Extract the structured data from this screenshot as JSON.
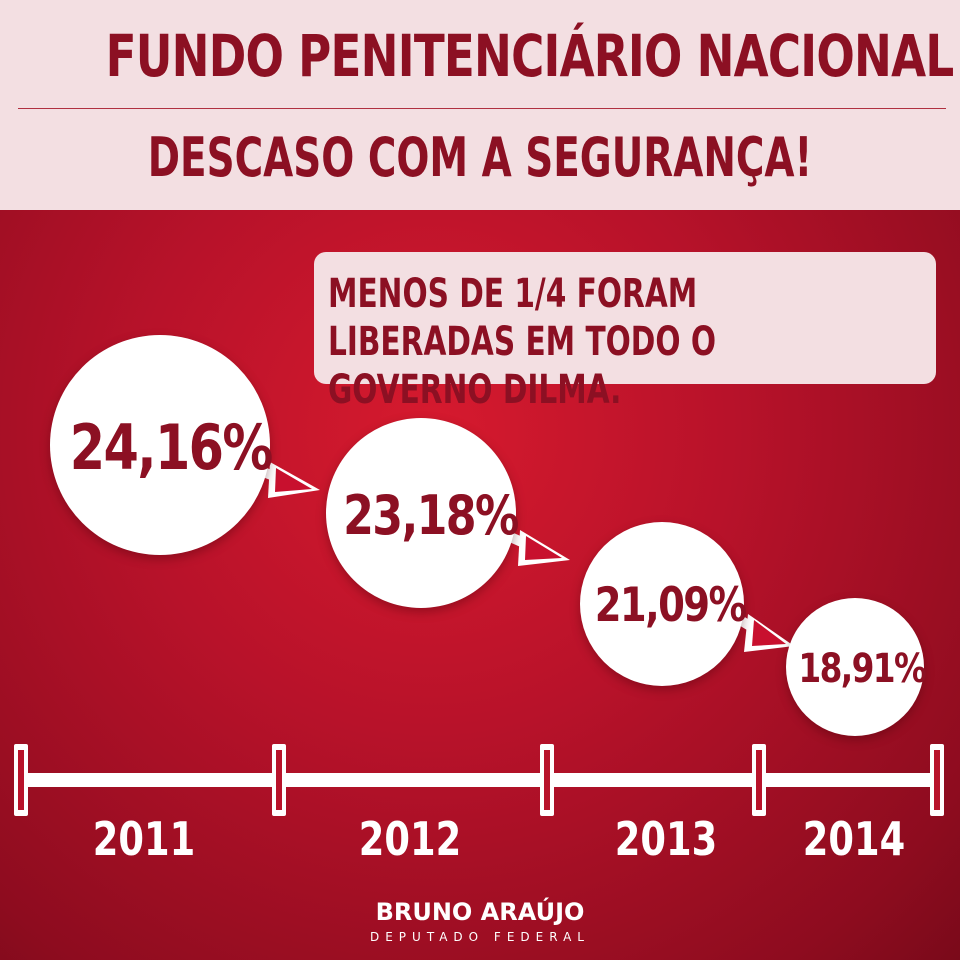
{
  "header": {
    "title": "FUNDO PENITENCIÁRIO NACIONAL",
    "subtitle": "DESCASO COM A SEGURANÇA!"
  },
  "note": {
    "text": "MENOS DE 1/4 FORAM LIBERADAS EM TODO O GOVERNO DILMA."
  },
  "values": [
    {
      "year": "2011",
      "label": "24,16%"
    },
    {
      "year": "2012",
      "label": "23,18%"
    },
    {
      "year": "2013",
      "label": "21,09%"
    },
    {
      "year": "2014",
      "label": "18,91%"
    }
  ],
  "footer": {
    "name": "BRUNO ARAÚJO",
    "role": "DEPUTADO FEDERAL"
  },
  "colors": {
    "accent": "#8c1023",
    "background": "#b8122a",
    "header_bg": "#f3dfe2",
    "arrow": "#c8102e"
  }
}
